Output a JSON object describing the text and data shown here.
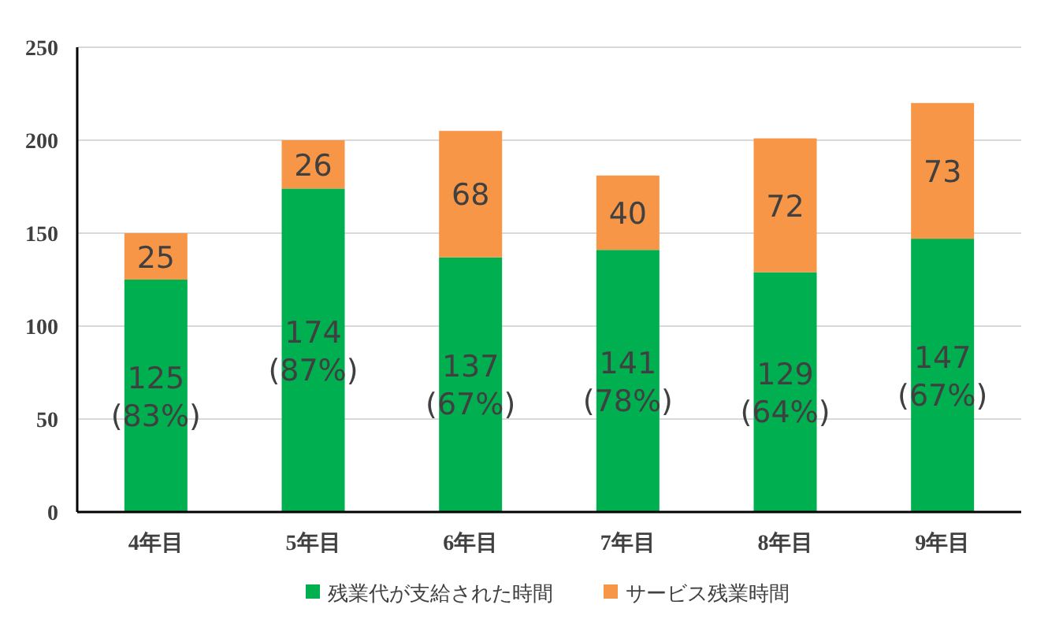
{
  "chart_data": {
    "type": "bar",
    "stacked": true,
    "categories": [
      "4年目",
      "5年目",
      "6年目",
      "7年目",
      "8年目",
      "9年目"
    ],
    "series": [
      {
        "name": "残業代が支給された時間",
        "color": "#00b050",
        "values": [
          125,
          174,
          137,
          141,
          129,
          147
        ],
        "value_labels": [
          "125 (83%)",
          "174 (87%)",
          "137 (67%)",
          "141 (78%)",
          "129 (64%)",
          "147 (67%)"
        ]
      },
      {
        "name": "サービス残業時間",
        "color": "#f79646",
        "values": [
          25,
          26,
          68,
          40,
          72,
          73
        ],
        "value_labels": [
          "25",
          "26",
          "68",
          "40",
          "72",
          "73"
        ]
      }
    ],
    "ylim": [
      0,
      250
    ],
    "yticks": [
      0,
      50,
      100,
      150,
      200,
      250
    ],
    "grid": "y",
    "legend": "bottom"
  }
}
